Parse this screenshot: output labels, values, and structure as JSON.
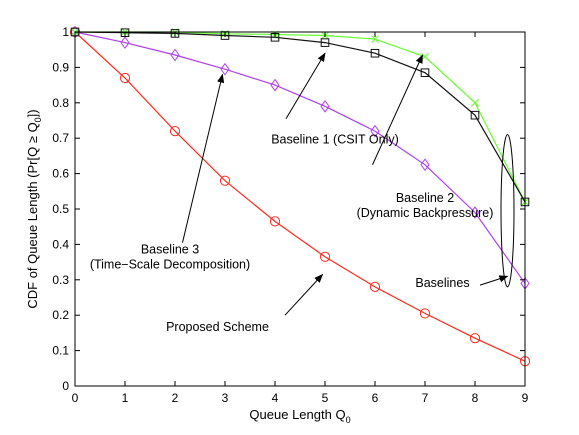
{
  "chart_data": {
    "type": "line",
    "title": "",
    "xlabel": "Queue Length Q",
    "xlabel_sub": "0",
    "ylabel": "CDF of Queue Length (Pr[Q ≥ Q",
    "ylabel_sub": "0",
    "ylabel_tail": "])",
    "xlim": [
      0,
      9
    ],
    "ylim": [
      0,
      1
    ],
    "x_ticks": [
      0,
      1,
      2,
      3,
      4,
      5,
      6,
      7,
      8,
      9
    ],
    "y_ticks": [
      0,
      0.1,
      0.2,
      0.3,
      0.4,
      0.5,
      0.6,
      0.7,
      0.8,
      0.9,
      1
    ],
    "grid": false,
    "x": [
      0,
      1,
      2,
      3,
      4,
      5,
      6,
      7,
      8,
      9
    ],
    "series": [
      {
        "id": "proposed",
        "color": "#ff2b1f",
        "marker": "circle",
        "values": [
          1.0,
          0.87,
          0.72,
          0.58,
          0.465,
          0.365,
          0.28,
          0.205,
          0.135,
          0.07
        ]
      },
      {
        "id": "baseline3",
        "color": "#b040f0",
        "marker": "diamond",
        "values": [
          1.0,
          0.97,
          0.935,
          0.895,
          0.85,
          0.79,
          0.72,
          0.625,
          0.49,
          0.29
        ]
      },
      {
        "id": "baseline2",
        "color": "#66ff33",
        "marker": "x",
        "values": [
          1.0,
          1.0,
          1.0,
          0.995,
          0.993,
          0.99,
          0.98,
          0.93,
          0.8,
          0.52
        ]
      },
      {
        "id": "baseline1",
        "color": "#111111",
        "marker": "square",
        "values": [
          1.0,
          0.998,
          0.996,
          0.99,
          0.985,
          0.97,
          0.94,
          0.885,
          0.765,
          0.52
        ]
      }
    ],
    "annotations": [
      {
        "id": "baseline1",
        "lines": [
          "Baseline 1 (CSIT Only)"
        ],
        "text_at": [
          5.2,
          0.685
        ],
        "arrow_from": [
          4.22,
          0.755
        ],
        "arrow_to": [
          5.0,
          0.94
        ]
      },
      {
        "id": "baseline2",
        "lines": [
          "Baseline 2",
          "(Dynamic Backpressure)"
        ],
        "text_at": [
          7.0,
          0.52
        ],
        "arrow_from": [
          5.95,
          0.625
        ],
        "arrow_to": [
          6.95,
          0.935
        ]
      },
      {
        "id": "baseline3",
        "lines": [
          "Baseline 3",
          "(Time−Scale Decomposition)"
        ],
        "text_at": [
          1.9,
          0.375
        ],
        "arrow_from": [
          2.15,
          0.405
        ],
        "arrow_to": [
          2.95,
          0.88
        ]
      },
      {
        "id": "baselines",
        "lines": [
          "Baselines"
        ],
        "text_at": [
          7.35,
          0.28
        ],
        "arrow_from": [
          8.1,
          0.285
        ],
        "arrow_to": [
          8.65,
          0.31
        ]
      },
      {
        "id": "proposed",
        "lines": [
          "Proposed Scheme"
        ],
        "text_at": [
          2.85,
          0.155
        ],
        "arrow_from": [
          4.2,
          0.2
        ],
        "arrow_to": [
          4.95,
          0.315
        ]
      }
    ],
    "ellipse": {
      "cx": 8.65,
      "cy": 0.495,
      "rx": 0.13,
      "ry": 0.215
    }
  }
}
